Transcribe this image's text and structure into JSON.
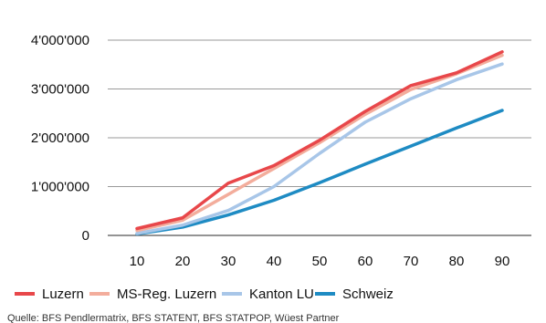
{
  "chart_data": {
    "type": "line",
    "x": [
      10,
      20,
      30,
      40,
      50,
      60,
      70,
      80,
      90
    ],
    "xlim": [
      0,
      95
    ],
    "ylim": [
      0,
      4000000
    ],
    "yticks": [
      0,
      1000000,
      2000000,
      3000000,
      4000000
    ],
    "ytick_labels": [
      "0",
      "1'000'000",
      "2'000'000",
      "3'000'000",
      "4'000'000"
    ],
    "xtick_labels": [
      "10",
      "20",
      "30",
      "40",
      "50",
      "60",
      "70",
      "80",
      "90"
    ],
    "grid": "horizontal",
    "legend_position": "bottom",
    "series": [
      {
        "name": "Luzern",
        "color": "#e8474a",
        "values": [
          140000,
          360000,
          1070000,
          1430000,
          1950000,
          2540000,
          3070000,
          3330000,
          3760000
        ]
      },
      {
        "name": "MS-Reg. Luzern",
        "color": "#f3ad9c",
        "values": [
          100000,
          310000,
          840000,
          1370000,
          1900000,
          2480000,
          2990000,
          3310000,
          3690000
        ]
      },
      {
        "name": "Kanton LU",
        "color": "#a8c6e8",
        "values": [
          40000,
          210000,
          510000,
          1000000,
          1680000,
          2320000,
          2800000,
          3190000,
          3510000
        ]
      },
      {
        "name": "Schweiz",
        "color": "#1e8bc3",
        "values": [
          30000,
          170000,
          420000,
          720000,
          1080000,
          1460000,
          1830000,
          2200000,
          2560000
        ]
      }
    ],
    "source": "Quelle: BFS Pendlermatrix, BFS STATENT, BFS STATPOP, Wüest Partner"
  }
}
